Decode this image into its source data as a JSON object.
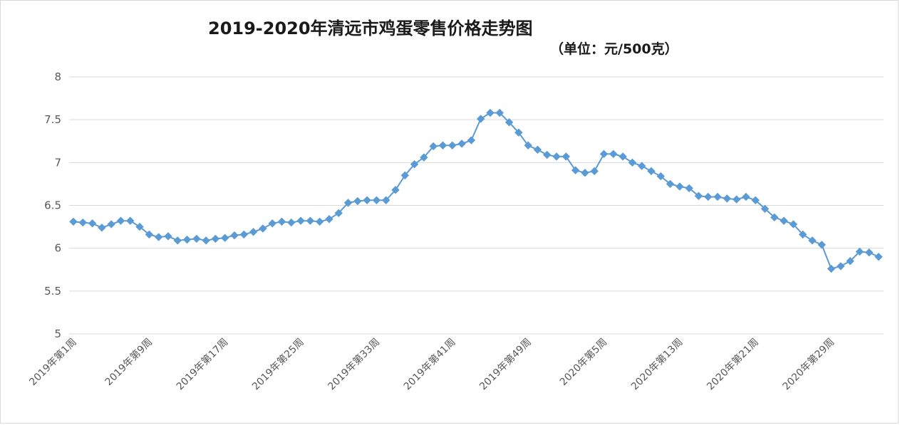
{
  "chart_data": {
    "type": "line",
    "title": "2019-2020年清远市鸡蛋零售价格走势图",
    "subtitle": "（单位：元/500克）",
    "xlabel": "",
    "ylabel": "",
    "ylim": [
      5,
      8
    ],
    "yticks": [
      "5",
      "5.5",
      "6",
      "6.5",
      "7",
      "7.5",
      "8"
    ],
    "grid": true,
    "x_tick_labels": [
      "2019年第1周",
      "2019年第9周",
      "2019年第17周",
      "2019年第25周",
      "2019年第33周",
      "2019年第41周",
      "2019年第49周",
      "2020年第5周",
      "2020年第13周",
      "2020年第21周",
      "2020年第29周"
    ],
    "x_tick_interval": 8,
    "series_color": "#5b9bd5",
    "series": [
      {
        "values": [
          6.31,
          6.3,
          6.29,
          6.24,
          6.28,
          6.32,
          6.32,
          6.25,
          6.16,
          6.13,
          6.14,
          6.09,
          6.1,
          6.11,
          6.09,
          6.11,
          6.12,
          6.15,
          6.16,
          6.19,
          6.23,
          6.29,
          6.31,
          6.3,
          6.32,
          6.32,
          6.31,
          6.34,
          6.41,
          6.53,
          6.55,
          6.56,
          6.56,
          6.56,
          6.68,
          6.85,
          6.98,
          7.06,
          7.19,
          7.2,
          7.2,
          7.22,
          7.26,
          7.51,
          7.58,
          7.58,
          7.47,
          7.35,
          7.2,
          7.15,
          7.09,
          7.07,
          7.07,
          6.91,
          6.88,
          6.9,
          7.1,
          7.1,
          7.07,
          7.0,
          6.96,
          6.9,
          6.84,
          6.75,
          6.72,
          6.7,
          6.61,
          6.6,
          6.6,
          6.58,
          6.57,
          6.6,
          6.56,
          6.46,
          6.36,
          6.32,
          6.28,
          6.16,
          6.09,
          6.04,
          5.76,
          5.79,
          5.85,
          5.96,
          5.95,
          5.9
        ]
      }
    ]
  }
}
